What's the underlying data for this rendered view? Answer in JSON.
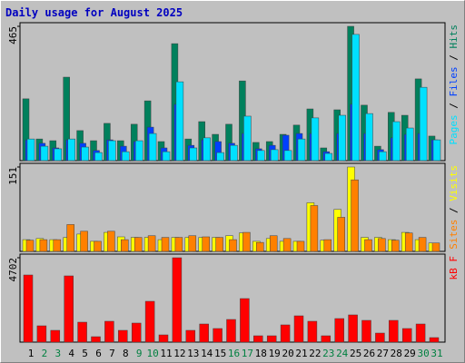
{
  "chart_data": [
    {
      "type": "bar",
      "title": "Daily usage for August 2025",
      "ylim": [
        0,
        465
      ],
      "yticks": [
        465
      ],
      "series": [
        {
          "name": "Hits",
          "color": "#00805C",
          "values": [
            214,
            75,
            69,
            289,
            104,
            69,
            129,
            69,
            126,
            207,
            66,
            405,
            75,
            135,
            91,
            126,
            276,
            63,
            66,
            91,
            123,
            179,
            44,
            176,
            465,
            192,
            50,
            167,
            157,
            283,
            85
          ]
        },
        {
          "name": "Files",
          "color": "#0040FF",
          "values": [
            72,
            60,
            44,
            72,
            60,
            35,
            72,
            50,
            66,
            116,
            44,
            195,
            53,
            72,
            66,
            60,
            94,
            41,
            53,
            88,
            94,
            94,
            31,
            94,
            195,
            94,
            38,
            79,
            91,
            94,
            72
          ]
        },
        {
          "name": "Pages",
          "color": "#00E0FF",
          "values": [
            75,
            50,
            41,
            75,
            47,
            28,
            69,
            31,
            69,
            94,
            31,
            273,
            44,
            79,
            28,
            53,
            154,
            35,
            38,
            35,
            75,
            148,
            25,
            157,
            437,
            163,
            31,
            135,
            113,
            254,
            72
          ]
        }
      ]
    },
    {
      "type": "bar",
      "ylim": [
        0,
        151
      ],
      "yticks": [
        151
      ],
      "series": [
        {
          "name": "Visits",
          "color": "#FFFF00",
          "values": [
            21,
            23,
            21,
            25,
            31,
            18,
            34,
            26,
            25,
            25,
            21,
            25,
            25,
            25,
            25,
            28,
            33,
            18,
            23,
            18,
            18,
            87,
            20,
            75,
            151,
            25,
            25,
            21,
            34,
            21,
            15
          ]
        },
        {
          "name": "Sites",
          "color": "#FF8000",
          "values": [
            20,
            21,
            21,
            48,
            36,
            18,
            36,
            21,
            25,
            28,
            25,
            25,
            28,
            26,
            25,
            21,
            34,
            16,
            28,
            23,
            18,
            82,
            21,
            61,
            128,
            21,
            23,
            20,
            33,
            25,
            15
          ]
        }
      ]
    },
    {
      "type": "bar",
      "ylim": [
        0,
        4702
      ],
      "yticks": [
        4702
      ],
      "categories": [
        "1",
        "2",
        "3",
        "4",
        "5",
        "6",
        "7",
        "8",
        "9",
        "10",
        "11",
        "12",
        "13",
        "14",
        "15",
        "16",
        "17",
        "18",
        "19",
        "20",
        "21",
        "22",
        "23",
        "24",
        "25",
        "26",
        "27",
        "28",
        "29",
        "30",
        "31"
      ],
      "category_colors": [
        "#000000",
        "#008040",
        "#008040",
        "#000000",
        "#000000",
        "#000000",
        "#000000",
        "#000000",
        "#008040",
        "#008040",
        "#000000",
        "#000000",
        "#000000",
        "#000000",
        "#000000",
        "#008040",
        "#008040",
        "#000000",
        "#000000",
        "#000000",
        "#000000",
        "#000000",
        "#008040",
        "#008040",
        "#000000",
        "#000000",
        "#000000",
        "#000000",
        "#000000",
        "#008040",
        "#008040"
      ],
      "series": [
        {
          "name": "kB F",
          "color": "#FF0000",
          "values": [
            3741,
            910,
            657,
            3691,
            1112,
            303,
            1163,
            657,
            1062,
            2275,
            404,
            4702,
            657,
            1011,
            758,
            1264,
            2427,
            354,
            354,
            961,
            1466,
            1163,
            354,
            1314,
            1517,
            1213,
            505,
            1213,
            758,
            1011,
            253
          ]
        }
      ]
    }
  ]
}
